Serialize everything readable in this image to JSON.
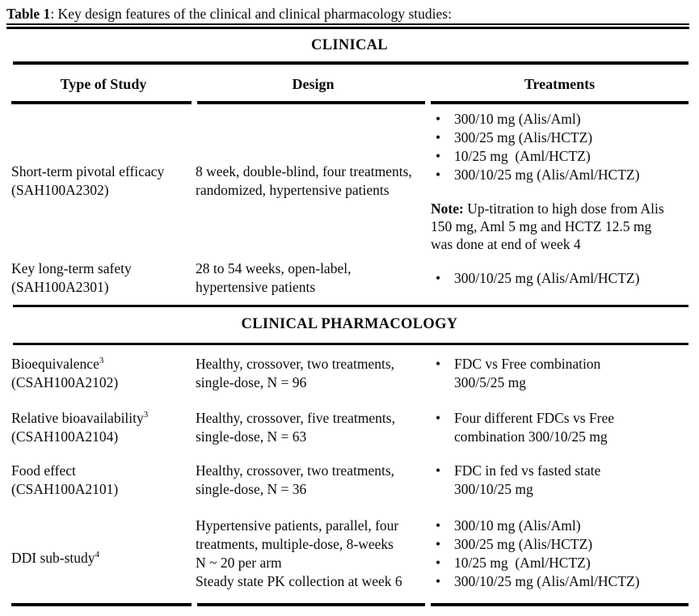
{
  "page": {
    "title_label": "Table 1",
    "title_rest": ": Key design features of the clinical and clinical pharmacology studies:"
  },
  "icons": {
    "bullet": "•"
  },
  "clinical": {
    "section_title": "CLINICAL",
    "col_headers": [
      "Type of Study",
      "Design",
      "Treatments"
    ],
    "row1": {
      "type_l1": "Short-term pivotal efficacy",
      "type_l2": "(SAH100A2302)",
      "design_l1": "8 week, double-blind, four treatments,",
      "design_l2": "randomized, hypertensive patients",
      "treatments": [
        "300/10 mg (Alis/Aml)",
        "300/25 mg (Alis/HCTZ)",
        "10/25 mg  (Aml/HCTZ)",
        "300/10/25 mg (Alis/Aml/HCTZ)"
      ],
      "note_label": "Note:",
      "note_l1": "Up-titration to high dose from Alis",
      "note_l2": "150 mg, Aml 5 mg and HCTZ 12.5 mg",
      "note_l3": "was done at end of week 4"
    },
    "row2": {
      "type_l1": "Key long-term safety",
      "type_l2": "(SAH100A2301)",
      "design_l1": "28 to 54 weeks, open-label,",
      "design_l2": "hypertensive patients",
      "treatment": "300/10/25 mg (Alis/Aml/HCTZ)"
    }
  },
  "pharmacology": {
    "section_title": "CLINICAL PHARMACOLOGY",
    "rows": [
      {
        "type_main": "Bioequivalence",
        "type_sup": "3",
        "type_l2": "(CSAH100A2102)",
        "design_l1": "Healthy, crossover, two treatments,",
        "design_l2": "single-dose, N = 96",
        "treat_l1": "FDC vs Free combination",
        "treat_l2": "300/5/25 mg"
      },
      {
        "type_main": "Relative bioavailability",
        "type_sup": "3",
        "type_l2": "(CSAH100A2104)",
        "design_l1": "Healthy, crossover, five treatments,",
        "design_l2": "single-dose, N = 63",
        "treat_l1": "Four different FDCs vs Free",
        "treat_l2": "combination 300/10/25 mg"
      },
      {
        "type_main": "Food effect",
        "type_l2": "(CSAH100A2101)",
        "design_l1": "Healthy, crossover, two treatments,",
        "design_l2": "single-dose, N = 36",
        "treat_l1": "FDC in fed vs fasted state",
        "treat_l2": "300/10/25 mg"
      }
    ],
    "ddi": {
      "type_main": "DDI sub-study",
      "type_sup": "4",
      "design_lines": [
        "Hypertensive patients, parallel, four",
        "treatments, multiple-dose, 8-weeks",
        "N ~ 20 per arm",
        "Steady state PK collection at week 6"
      ],
      "treatments": [
        "300/10 mg (Alis/Aml)",
        "300/25 mg (Alis/HCTZ)",
        "10/25 mg  (Aml/HCTZ)",
        "300/10/25 mg (Alis/Aml/HCTZ)"
      ]
    }
  }
}
